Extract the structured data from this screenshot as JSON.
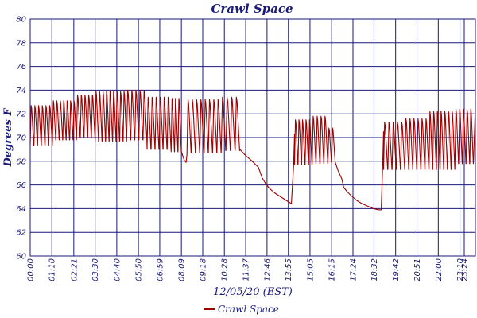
{
  "chart_data": {
    "type": "line",
    "title": "Crawl Space",
    "xlabel": "12/05/20 (EST)",
    "ylabel": "Degrees F",
    "ylim": [
      60,
      80
    ],
    "yticks": [
      60,
      62,
      64,
      66,
      68,
      70,
      72,
      74,
      76,
      78,
      80
    ],
    "x_range_hours": [
      0,
      24
    ],
    "xticks": [
      {
        "label": "00:00",
        "hour": 0.0
      },
      {
        "label": "01:10",
        "hour": 1.1667
      },
      {
        "label": "02:21",
        "hour": 2.35
      },
      {
        "label": "03:30",
        "hour": 3.5
      },
      {
        "label": "04:40",
        "hour": 4.6667
      },
      {
        "label": "05:50",
        "hour": 5.8333
      },
      {
        "label": "06:59",
        "hour": 6.9833
      },
      {
        "label": "08:09",
        "hour": 8.15
      },
      {
        "label": "09:18",
        "hour": 9.3
      },
      {
        "label": "10:28",
        "hour": 10.4667
      },
      {
        "label": "11:37",
        "hour": 11.6167
      },
      {
        "label": "12:46",
        "hour": 12.7667
      },
      {
        "label": "13:55",
        "hour": 13.9167
      },
      {
        "label": "15:05",
        "hour": 15.0833
      },
      {
        "label": "16:15",
        "hour": 16.25
      },
      {
        "label": "17:24",
        "hour": 17.4
      },
      {
        "label": "18:32",
        "hour": 18.5333
      },
      {
        "label": "19:42",
        "hour": 19.7
      },
      {
        "label": "20:51",
        "hour": 20.85
      },
      {
        "label": "22:00",
        "hour": 22.0
      },
      {
        "label": "23:10",
        "hour": 23.1667
      },
      {
        "label": "23:24",
        "hour": 23.4
      }
    ],
    "grid": true,
    "legend_placement": "bottom",
    "series": [
      {
        "name": "Crawl Space",
        "color": "#a00000",
        "segments": [
          {
            "type": "osc",
            "t0": 0.0,
            "t1": 1.2,
            "cycle_h": 0.19,
            "low": 69.3,
            "high": 72.7
          },
          {
            "type": "osc",
            "t0": 1.2,
            "t1": 2.5,
            "cycle_h": 0.2,
            "low": 69.8,
            "high": 73.1
          },
          {
            "type": "osc",
            "t0": 2.5,
            "t1": 3.5,
            "cycle_h": 0.2,
            "low": 70.0,
            "high": 73.6
          },
          {
            "type": "osc",
            "t0": 3.5,
            "t1": 5.2,
            "cycle_h": 0.2,
            "low": 69.7,
            "high": 73.9
          },
          {
            "type": "osc",
            "t0": 5.2,
            "t1": 6.3,
            "cycle_h": 0.2,
            "low": 69.8,
            "high": 74.0
          },
          {
            "type": "osc",
            "t0": 6.3,
            "t1": 7.6,
            "cycle_h": 0.22,
            "low": 69.0,
            "high": 73.4
          },
          {
            "type": "osc",
            "t0": 7.6,
            "t1": 8.15,
            "cycle_h": 0.22,
            "low": 68.8,
            "high": 73.3
          },
          {
            "type": "line",
            "points": [
              [
                8.15,
                68.8
              ],
              [
                8.3,
                68.1
              ],
              [
                8.4,
                67.9
              ],
              [
                8.45,
                68.6
              ]
            ]
          },
          {
            "type": "osc",
            "t0": 8.45,
            "t1": 10.3,
            "cycle_h": 0.22,
            "low": 68.7,
            "high": 73.2
          },
          {
            "type": "osc",
            "t0": 10.3,
            "t1": 11.3,
            "cycle_h": 0.23,
            "low": 68.9,
            "high": 73.4
          },
          {
            "type": "line",
            "points": [
              [
                11.3,
                69.0
              ],
              [
                11.6,
                68.5
              ],
              [
                11.9,
                68.1
              ],
              [
                12.1,
                67.8
              ],
              [
                12.3,
                67.5
              ],
              [
                12.5,
                66.6
              ],
              [
                12.7,
                66.1
              ],
              [
                12.9,
                65.7
              ],
              [
                13.2,
                65.3
              ],
              [
                13.5,
                65.0
              ],
              [
                13.8,
                64.7
              ],
              [
                14.0,
                64.5
              ],
              [
                14.08,
                64.4
              ]
            ]
          },
          {
            "type": "line",
            "points": [
              [
                14.08,
                64.4
              ],
              [
                14.2,
                67.6
              ],
              [
                14.25,
                70.3
              ]
            ]
          },
          {
            "type": "osc",
            "t0": 14.25,
            "t1": 15.2,
            "cycle_h": 0.2,
            "low": 67.7,
            "high": 71.5
          },
          {
            "type": "osc",
            "t0": 15.2,
            "t1": 16.05,
            "cycle_h": 0.2,
            "low": 67.8,
            "high": 71.8
          },
          {
            "type": "osc",
            "t0": 16.05,
            "t1": 16.45,
            "cycle_h": 0.2,
            "low": 67.9,
            "high": 70.8
          },
          {
            "type": "line",
            "points": [
              [
                16.45,
                67.9
              ],
              [
                16.6,
                67.2
              ],
              [
                16.8,
                66.5
              ],
              [
                16.9,
                65.8
              ],
              [
                17.1,
                65.4
              ],
              [
                17.3,
                65.1
              ],
              [
                17.6,
                64.7
              ],
              [
                17.9,
                64.4
              ],
              [
                18.2,
                64.2
              ],
              [
                18.5,
                64.0
              ],
              [
                18.8,
                63.9
              ],
              [
                18.92,
                63.9
              ]
            ]
          },
          {
            "type": "line",
            "points": [
              [
                18.92,
                63.9
              ],
              [
                19.0,
                67.5
              ],
              [
                19.05,
                70.5
              ]
            ]
          },
          {
            "type": "osc",
            "t0": 19.05,
            "t1": 20.2,
            "cycle_h": 0.21,
            "low": 67.3,
            "high": 71.3
          },
          {
            "type": "osc",
            "t0": 20.2,
            "t1": 21.5,
            "cycle_h": 0.22,
            "low": 67.3,
            "high": 71.6
          },
          {
            "type": "osc",
            "t0": 21.5,
            "t1": 22.9,
            "cycle_h": 0.21,
            "low": 67.3,
            "high": 72.2
          },
          {
            "type": "osc",
            "t0": 22.9,
            "t1": 23.9,
            "cycle_h": 0.2,
            "low": 67.8,
            "high": 72.4
          },
          {
            "type": "line",
            "points": [
              [
                23.9,
                68.0
              ],
              [
                24.0,
                72.8
              ]
            ]
          }
        ]
      }
    ]
  }
}
